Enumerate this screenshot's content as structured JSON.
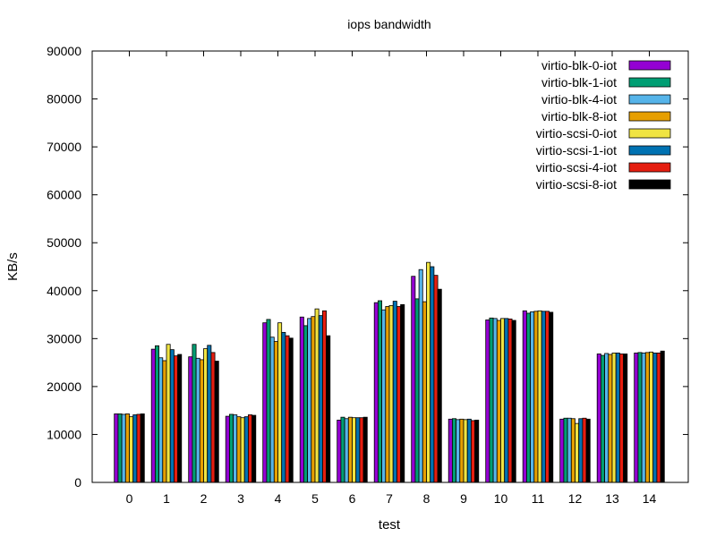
{
  "chart_data": {
    "type": "bar",
    "title": "iops bandwidth",
    "xlabel": "test",
    "ylabel": "KB/s",
    "ylim": [
      0,
      90000
    ],
    "yticks": [
      0,
      10000,
      20000,
      30000,
      40000,
      50000,
      60000,
      70000,
      80000,
      90000
    ],
    "grid": false,
    "legend_position": "top-right",
    "categories": [
      "0",
      "1",
      "2",
      "3",
      "4",
      "5",
      "6",
      "7",
      "8",
      "9",
      "10",
      "11",
      "12",
      "13",
      "14"
    ],
    "series": [
      {
        "name": "virtio-blk-0-iot",
        "color": "#9400d3",
        "values": [
          14300,
          27800,
          26200,
          13800,
          33300,
          34500,
          13000,
          37500,
          43000,
          13200,
          33900,
          35800,
          13200,
          26800,
          27000
        ]
      },
      {
        "name": "virtio-blk-1-iot",
        "color": "#009e73",
        "values": [
          14300,
          28500,
          28800,
          14200,
          34000,
          32700,
          13600,
          37900,
          38300,
          13300,
          34300,
          35300,
          13400,
          26500,
          27100
        ]
      },
      {
        "name": "virtio-blk-4-iot",
        "color": "#56b4e9",
        "values": [
          14200,
          26000,
          25900,
          14100,
          30300,
          34200,
          13300,
          36000,
          44400,
          13100,
          34200,
          35600,
          13400,
          26900,
          27000
        ]
      },
      {
        "name": "virtio-blk-8-iot",
        "color": "#e69f00",
        "values": [
          14300,
          25400,
          25600,
          13700,
          29400,
          34600,
          13600,
          36700,
          37700,
          13200,
          33800,
          35700,
          13300,
          26700,
          27100
        ]
      },
      {
        "name": "virtio-scsi-0-iot",
        "color": "#f0e442",
        "values": [
          13700,
          28800,
          27900,
          13500,
          33300,
          36200,
          13500,
          36900,
          45900,
          13100,
          34200,
          35800,
          12300,
          27000,
          27200
        ]
      },
      {
        "name": "virtio-scsi-1-iot",
        "color": "#0072b2",
        "values": [
          14100,
          27700,
          28600,
          13700,
          31300,
          34800,
          13500,
          37800,
          45000,
          13200,
          34200,
          35700,
          13300,
          27000,
          27000
        ]
      },
      {
        "name": "virtio-scsi-4-iot",
        "color": "#e51e10",
        "values": [
          14200,
          26400,
          27100,
          14100,
          30600,
          35800,
          13500,
          36700,
          43200,
          12900,
          34100,
          35700,
          13400,
          26800,
          27000
        ]
      },
      {
        "name": "virtio-scsi-8-iot",
        "color": "#000000",
        "values": [
          14300,
          26700,
          25300,
          14000,
          30100,
          30600,
          13600,
          37100,
          40300,
          13000,
          33800,
          35500,
          13200,
          26800,
          27400
        ]
      }
    ]
  }
}
